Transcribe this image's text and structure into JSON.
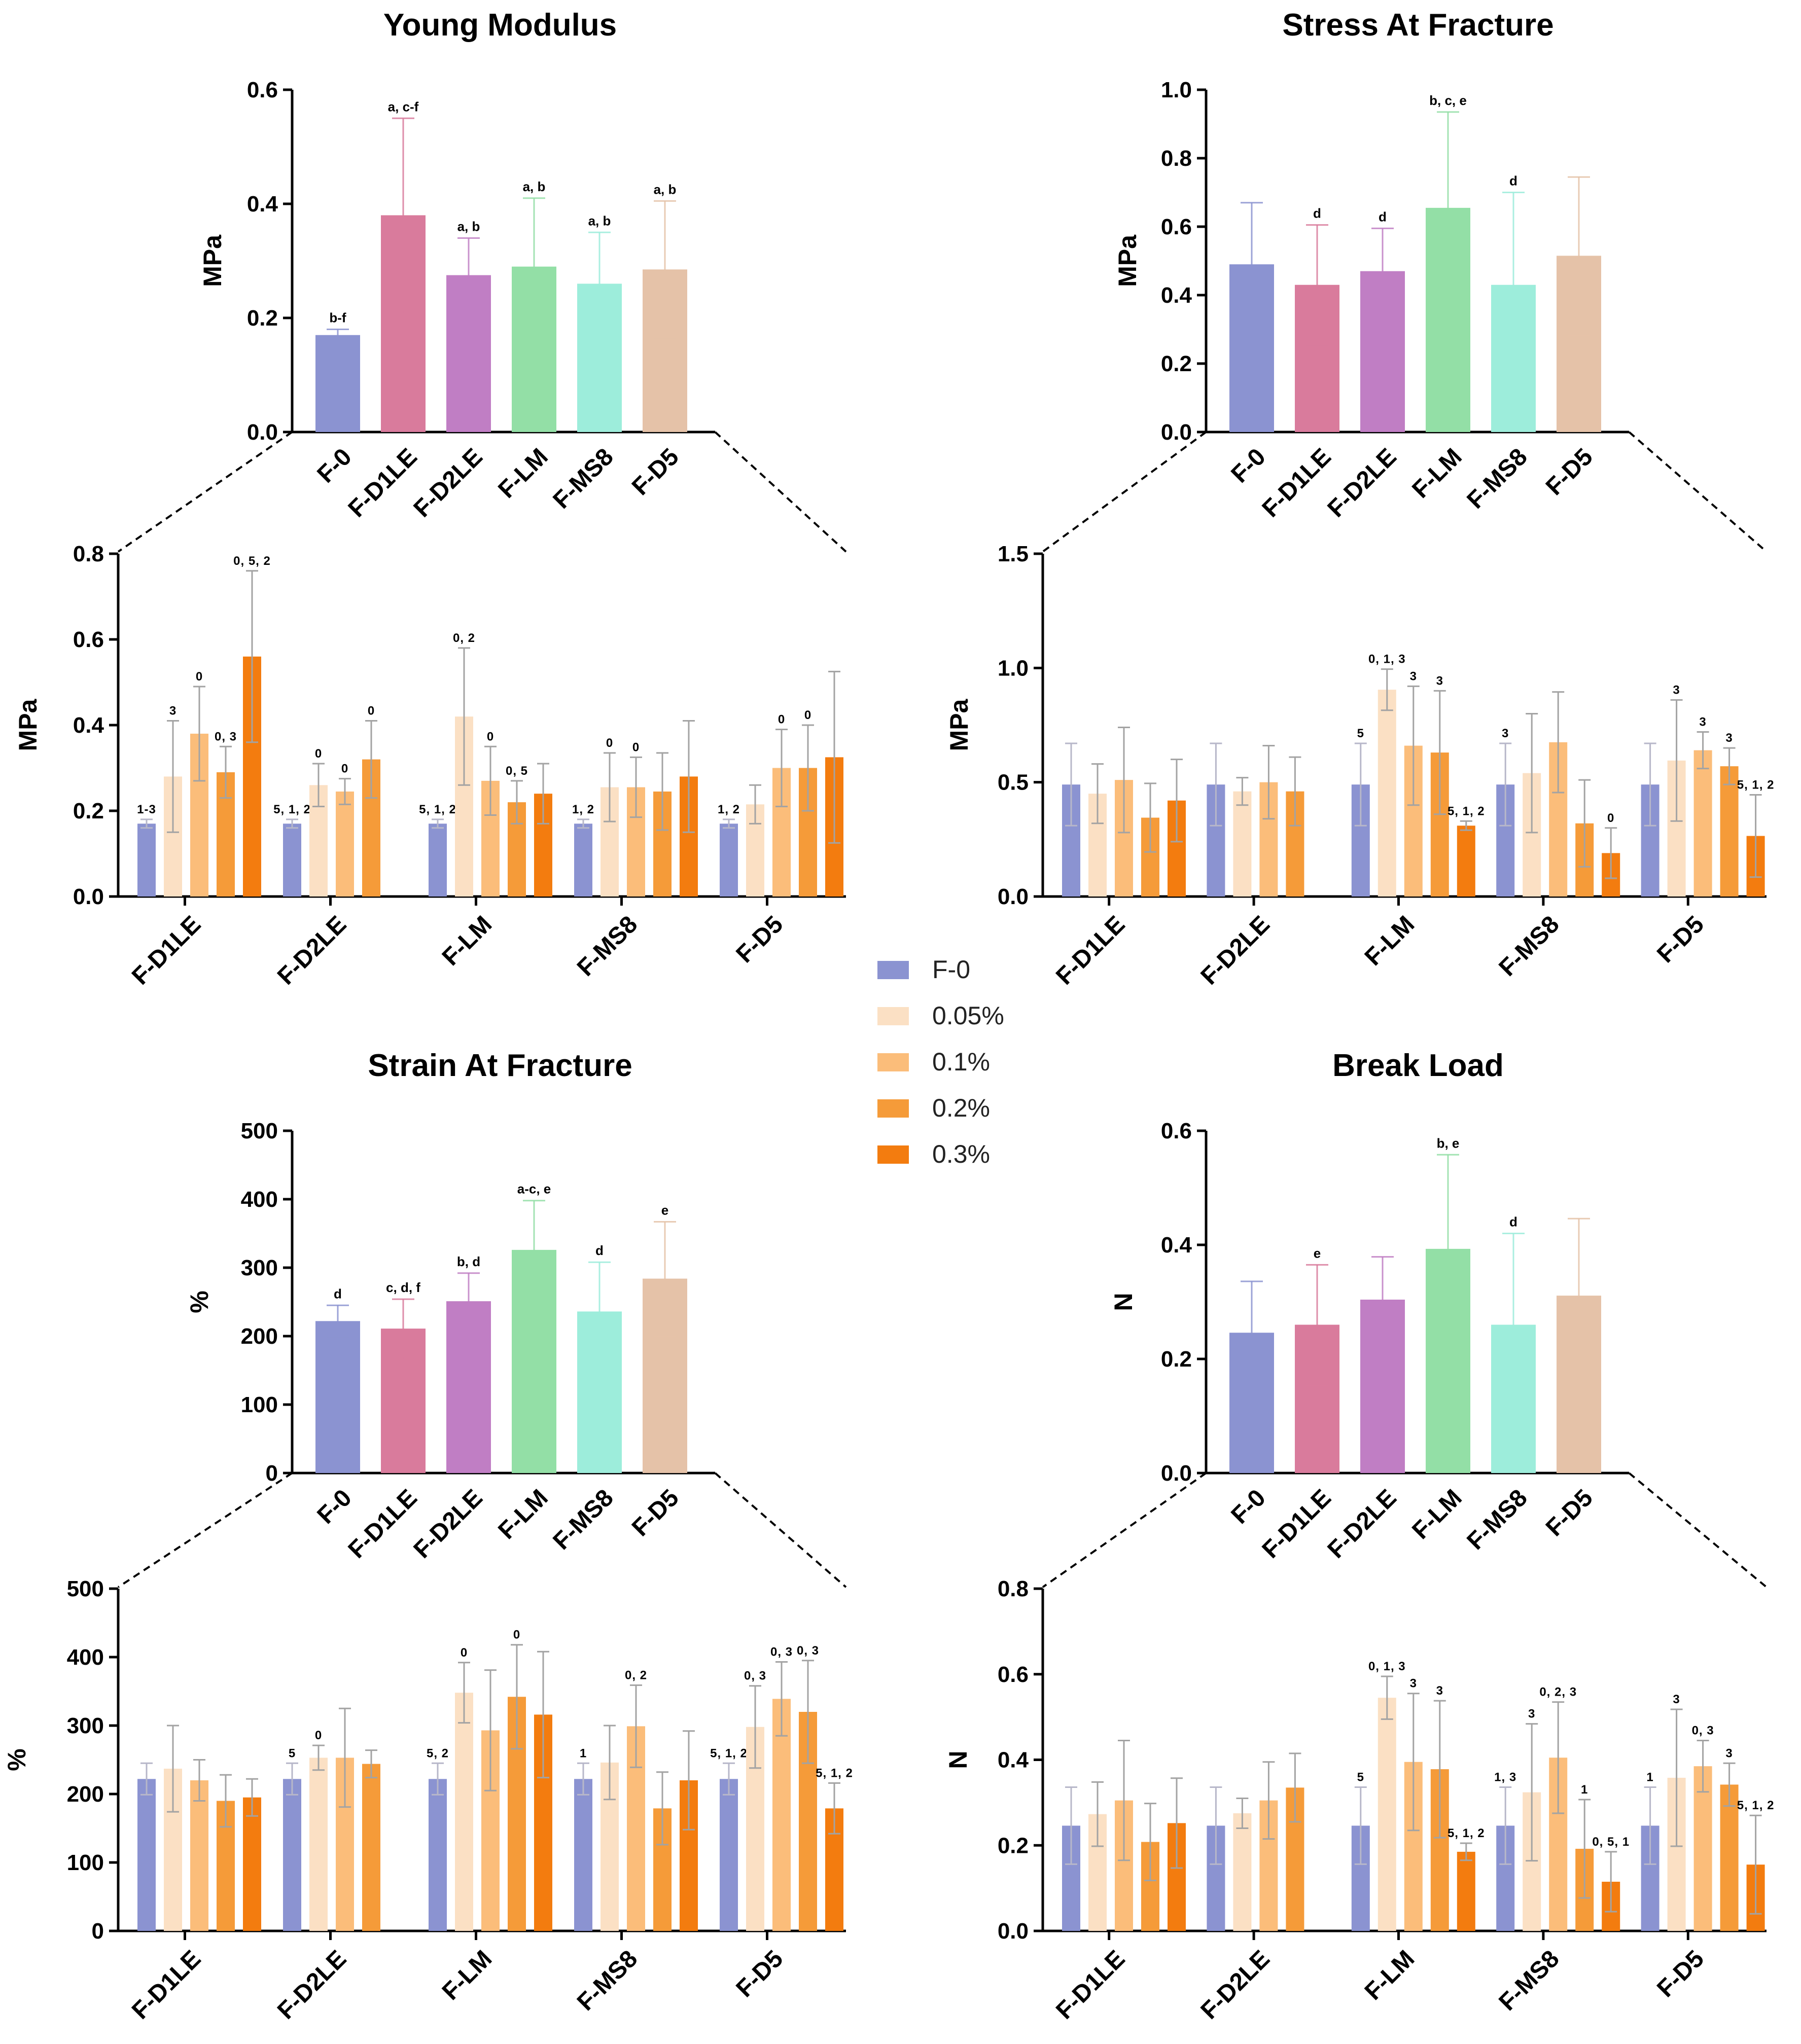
{
  "legend": {
    "items": [
      {
        "label": "F-0",
        "color": "#8b93d1"
      },
      {
        "label": "0.05%",
        "color": "#fbe0c4"
      },
      {
        "label": "0.1%",
        "color": "#fbbd7a"
      },
      {
        "label": "0.2%",
        "color": "#f59b39"
      },
      {
        "label": "0.3%",
        "color": "#f37c0f"
      }
    ]
  },
  "colors": {
    "F-0": "#8b93d1",
    "F-D1LE": "#d97b9c",
    "F-D2LE": "#c07ec4",
    "F-LM": "#93dfa6",
    "F-MS8": "#9deddb",
    "F-D5": "#e5c2a8",
    "err_light": "#c9c9c9",
    "err_dark": "#9a9a9a"
  },
  "chart_data": [
    {
      "id": "ym_top",
      "type": "bar",
      "title": "Young Modulus",
      "ylabel": "MPa",
      "ylim": [
        0,
        0.6
      ],
      "yticks": [
        "0.0",
        "0.2",
        "0.4",
        "0.6"
      ],
      "categories": [
        "F-0",
        "F-D1LE",
        "F-D2LE",
        "F-LM",
        "F-MS8",
        "F-D5"
      ],
      "values": [
        0.17,
        0.38,
        0.275,
        0.29,
        0.26,
        0.285
      ],
      "errors": [
        0.01,
        0.17,
        0.065,
        0.12,
        0.09,
        0.12
      ],
      "annotations": [
        "b-f",
        "a, c-f",
        "a, b",
        "a, b",
        "a, b",
        "a, b"
      ]
    },
    {
      "id": "ym_bottom",
      "type": "grouped-bar",
      "ylabel": "MPa",
      "ylim": [
        0,
        0.8
      ],
      "yticks": [
        "0.0",
        "0.2",
        "0.4",
        "0.6",
        "0.8"
      ],
      "categories": [
        "F-D1LE",
        "F-D2LE",
        "F-LM",
        "F-MS8",
        "F-D5"
      ],
      "series_names": [
        "F-0",
        "0.05%",
        "0.1%",
        "0.2%",
        "0.3%"
      ],
      "groups": [
        {
          "values": [
            0.17,
            0.28,
            0.38,
            0.29,
            0.56
          ],
          "errors": [
            0.01,
            0.13,
            0.11,
            0.06,
            0.2
          ],
          "annotations": [
            "1-3",
            "3",
            "0",
            "0, 3",
            "0, 5, 2"
          ]
        },
        {
          "values": [
            0.17,
            0.26,
            0.245,
            0.32
          ],
          "errors": [
            0.01,
            0.05,
            0.03,
            0.09
          ],
          "annotations": [
            "5, 1, 2",
            "0",
            "0",
            "0"
          ]
        },
        {
          "values": [
            0.17,
            0.42,
            0.27,
            0.22,
            0.24
          ],
          "errors": [
            0.01,
            0.16,
            0.08,
            0.05,
            0.07
          ],
          "annotations": [
            "5, 1, 2",
            "0, 2",
            "0",
            "0, 5",
            ""
          ]
        },
        {
          "values": [
            0.17,
            0.255,
            0.255,
            0.245,
            0.28
          ],
          "errors": [
            0.01,
            0.08,
            0.07,
            0.09,
            0.13
          ],
          "annotations": [
            "1, 2",
            "0",
            "0",
            "",
            ""
          ]
        },
        {
          "values": [
            0.17,
            0.215,
            0.3,
            0.3,
            0.325
          ],
          "errors": [
            0.01,
            0.045,
            0.09,
            0.1,
            0.2
          ],
          "annotations": [
            "1, 2",
            "",
            "0",
            "0",
            ""
          ]
        }
      ]
    },
    {
      "id": "sf_top",
      "type": "bar",
      "title": "Stress At Fracture",
      "ylabel": "MPa",
      "ylim": [
        0,
        1.0
      ],
      "yticks": [
        "0.0",
        "0.2",
        "0.4",
        "0.6",
        "0.8",
        "1.0"
      ],
      "categories": [
        "F-0",
        "F-D1LE",
        "F-D2LE",
        "F-LM",
        "F-MS8",
        "F-D5"
      ],
      "values": [
        0.49,
        0.43,
        0.47,
        0.655,
        0.43,
        0.515
      ],
      "errors": [
        0.18,
        0.175,
        0.125,
        0.28,
        0.27,
        0.23
      ],
      "annotations": [
        "",
        "d",
        "d",
        "b, c, e",
        "d",
        ""
      ]
    },
    {
      "id": "sf_bottom",
      "type": "grouped-bar",
      "ylabel": "MPa",
      "ylim": [
        0,
        1.5
      ],
      "yticks": [
        "0.0",
        "0.5",
        "1.0",
        "1.5"
      ],
      "categories": [
        "F-D1LE",
        "F-D2LE",
        "F-LM",
        "F-MS8",
        "F-D5"
      ],
      "series_names": [
        "F-0",
        "0.05%",
        "0.1%",
        "0.2%",
        "0.3%"
      ],
      "groups": [
        {
          "values": [
            0.49,
            0.45,
            0.51,
            0.345,
            0.42
          ],
          "errors": [
            0.18,
            0.13,
            0.23,
            0.15,
            0.18
          ],
          "annotations": [
            "",
            "",
            "",
            "",
            ""
          ]
        },
        {
          "values": [
            0.49,
            0.46,
            0.5,
            0.46
          ],
          "errors": [
            0.18,
            0.06,
            0.16,
            0.15
          ],
          "annotations": [
            "",
            "",
            "",
            ""
          ]
        },
        {
          "values": [
            0.49,
            0.905,
            0.66,
            0.63,
            0.31
          ],
          "errors": [
            0.18,
            0.09,
            0.26,
            0.27,
            0.02
          ],
          "annotations": [
            "5",
            "0, 1, 3",
            "3",
            "3",
            "5, 1, 2"
          ]
        },
        {
          "values": [
            0.49,
            0.54,
            0.675,
            0.32,
            0.19
          ],
          "errors": [
            0.18,
            0.26,
            0.22,
            0.19,
            0.11
          ],
          "annotations": [
            "3",
            "",
            "",
            "",
            "0"
          ]
        },
        {
          "values": [
            0.49,
            0.595,
            0.64,
            0.57,
            0.265
          ],
          "errors": [
            0.18,
            0.265,
            0.08,
            0.08,
            0.18
          ],
          "annotations": [
            "",
            "3",
            "3",
            "3",
            "5, 1, 2"
          ]
        }
      ]
    },
    {
      "id": "st_top",
      "type": "bar",
      "title": "Strain At Fracture",
      "ylabel": "%",
      "ylim": [
        0,
        500
      ],
      "yticks": [
        "0",
        "100",
        "200",
        "300",
        "400",
        "500"
      ],
      "categories": [
        "F-0",
        "F-D1LE",
        "F-D2LE",
        "F-LM",
        "F-MS8",
        "F-D5"
      ],
      "values": [
        222,
        211,
        251,
        326,
        236,
        284
      ],
      "errors": [
        23,
        43,
        41,
        72,
        72,
        83
      ],
      "annotations": [
        "d",
        "c, d, f",
        "b, d",
        "a-c, e",
        "d",
        "e"
      ]
    },
    {
      "id": "st_bottom",
      "type": "grouped-bar",
      "ylabel": "%",
      "ylim": [
        0,
        500
      ],
      "yticks": [
        "0",
        "100",
        "200",
        "300",
        "400",
        "500"
      ],
      "categories": [
        "F-D1LE",
        "F-D2LE",
        "F-LM",
        "F-MS8",
        "F-D5"
      ],
      "series_names": [
        "F-0",
        "0.05%",
        "0.1%",
        "0.2%",
        "0.3%"
      ],
      "groups": [
        {
          "values": [
            222,
            237,
            220,
            190,
            195
          ],
          "errors": [
            23,
            63,
            30,
            38,
            27
          ],
          "annotations": [
            "",
            "",
            "",
            "",
            ""
          ]
        },
        {
          "values": [
            222,
            253,
            253,
            244
          ],
          "errors": [
            23,
            18,
            72,
            20
          ],
          "annotations": [
            "5",
            "0",
            "",
            ""
          ]
        },
        {
          "values": [
            222,
            348,
            293,
            342,
            316
          ],
          "errors": [
            23,
            44,
            88,
            76,
            92
          ],
          "annotations": [
            "5, 2",
            "0",
            "",
            "0",
            ""
          ]
        },
        {
          "values": [
            222,
            246,
            299,
            179,
            220
          ],
          "errors": [
            23,
            54,
            60,
            53,
            72
          ],
          "annotations": [
            "1",
            "",
            "0, 2",
            "",
            ""
          ]
        },
        {
          "values": [
            222,
            298,
            339,
            320,
            179
          ],
          "errors": [
            23,
            60,
            54,
            75,
            37
          ],
          "annotations": [
            "5, 1, 2",
            "0, 3",
            "0, 3",
            "0, 3",
            "5, 1, 2"
          ]
        }
      ]
    },
    {
      "id": "bl_top",
      "type": "bar",
      "title": "Break Load",
      "ylabel": "N",
      "ylim": [
        0,
        0.6
      ],
      "yticks": [
        "0.0",
        "0.2",
        "0.4",
        "0.6"
      ],
      "categories": [
        "F-0",
        "F-D1LE",
        "F-D2LE",
        "F-LM",
        "F-MS8",
        "F-D5"
      ],
      "values": [
        0.246,
        0.26,
        0.304,
        0.393,
        0.26,
        0.311
      ],
      "errors": [
        0.09,
        0.105,
        0.075,
        0.165,
        0.16,
        0.135
      ],
      "annotations": [
        "",
        "e",
        "",
        "b, e",
        "d",
        ""
      ]
    },
    {
      "id": "bl_bottom",
      "type": "grouped-bar",
      "ylabel": "N",
      "ylim": [
        0,
        0.8
      ],
      "yticks": [
        "0.0",
        "0.2",
        "0.4",
        "0.6",
        "0.8"
      ],
      "categories": [
        "F-D1LE",
        "F-D2LE",
        "F-LM",
        "F-MS8",
        "F-D5"
      ],
      "series_names": [
        "F-0",
        "0.05%",
        "0.1%",
        "0.2%",
        "0.3%"
      ],
      "groups": [
        {
          "values": [
            0.246,
            0.273,
            0.305,
            0.208,
            0.252
          ],
          "errors": [
            0.09,
            0.075,
            0.14,
            0.09,
            0.105
          ],
          "annotations": [
            "",
            "",
            "",
            "",
            ""
          ]
        },
        {
          "values": [
            0.246,
            0.275,
            0.305,
            0.335
          ],
          "errors": [
            0.09,
            0.035,
            0.09,
            0.08
          ],
          "annotations": [
            "",
            "",
            "",
            ""
          ]
        },
        {
          "values": [
            0.246,
            0.545,
            0.395,
            0.378,
            0.185
          ],
          "errors": [
            0.09,
            0.05,
            0.16,
            0.16,
            0.02
          ],
          "annotations": [
            "5",
            "0, 1, 3",
            "3",
            "3",
            "5, 1, 2"
          ]
        },
        {
          "values": [
            0.246,
            0.324,
            0.405,
            0.192,
            0.115
          ],
          "errors": [
            0.09,
            0.16,
            0.13,
            0.115,
            0.07
          ],
          "annotations": [
            "1, 3",
            "3",
            "0, 2, 3",
            "1",
            "0, 5, 1"
          ]
        },
        {
          "values": [
            0.246,
            0.358,
            0.385,
            0.342,
            0.155
          ],
          "errors": [
            0.09,
            0.16,
            0.06,
            0.05,
            0.115
          ],
          "annotations": [
            "1",
            "3",
            "0, 3",
            "3",
            "5, 1, 2"
          ]
        }
      ]
    }
  ]
}
